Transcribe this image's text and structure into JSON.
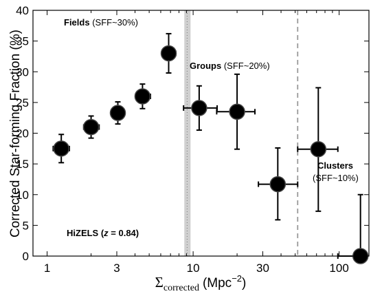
{
  "chart_data": {
    "type": "scatter",
    "title": "",
    "xlabel": {
      "symbol": "Σ",
      "subscript": "corrected",
      "unit": "(Mpc",
      "exponent": "−2",
      "close": ")"
    },
    "ylabel": "Corrected Star-forming Fraction (%)",
    "xscale": "log",
    "xlim": [
      0.8,
      160
    ],
    "ylim": [
      0,
      40
    ],
    "xticks": [
      1,
      3,
      10,
      30,
      100
    ],
    "xtick_labels": [
      "1",
      "3",
      "10",
      "30",
      "100"
    ],
    "yticks": [
      0,
      5,
      10,
      15,
      20,
      25,
      30,
      35,
      40
    ],
    "ytick_labels": [
      "0",
      "5",
      "10",
      "15",
      "20",
      "25",
      "30",
      "35",
      "40"
    ],
    "grid": false,
    "points": [
      {
        "x": 1.25,
        "y": 17.5,
        "xerr": [
          1.1,
          1.42
        ],
        "yerr": [
          15.2,
          19.8
        ]
      },
      {
        "x": 2.0,
        "y": 21.0,
        "xerr": [
          1.78,
          2.27
        ],
        "yerr": [
          19.2,
          22.8
        ]
      },
      {
        "x": 3.05,
        "y": 23.3,
        "xerr": [
          2.78,
          3.37
        ],
        "yerr": [
          21.5,
          25.1
        ]
      },
      {
        "x": 4.5,
        "y": 26.0,
        "xerr": [
          4.1,
          5.1
        ],
        "yerr": [
          24.0,
          28.0
        ]
      },
      {
        "x": 6.8,
        "y": 33.0,
        "xerr": [
          6.1,
          7.6
        ],
        "yerr": [
          29.8,
          36.2
        ]
      },
      {
        "x": 11.0,
        "y": 24.1,
        "xerr": [
          8.6,
          14.6
        ],
        "yerr": [
          20.5,
          27.7
        ]
      },
      {
        "x": 20.0,
        "y": 23.5,
        "xerr": [
          14.5,
          26.5
        ],
        "yerr": [
          17.4,
          29.6
        ]
      },
      {
        "x": 38.0,
        "y": 11.7,
        "xerr": [
          28.0,
          52.0
        ],
        "yerr": [
          5.9,
          17.6
        ]
      },
      {
        "x": 72.0,
        "y": 17.4,
        "xerr": [
          52.0,
          98.0
        ],
        "yerr": [
          7.3,
          27.4
        ]
      },
      {
        "x": 140.0,
        "y": 0.0,
        "xerr": [
          98.0,
          155.0
        ],
        "yerr": [
          0.0,
          10.0
        ]
      }
    ],
    "shaded_band": {
      "xmin": 8.7,
      "xmax": 9.6,
      "color": "#d0d0d0"
    },
    "dotted_line_x": 9.1,
    "dashed_line_x": 52,
    "marker_color": "#000000",
    "annotations": [
      {
        "bold": "Fields",
        "normal": " (SFF~30%)"
      },
      {
        "bold": "Groups",
        "normal": " (SFF~20%)"
      },
      {
        "bold": "Clusters",
        "normal": "(SFF~10%)"
      },
      {
        "bold": "HiZELS (",
        "italic": "z",
        "tail": " = 0.84)"
      }
    ]
  }
}
